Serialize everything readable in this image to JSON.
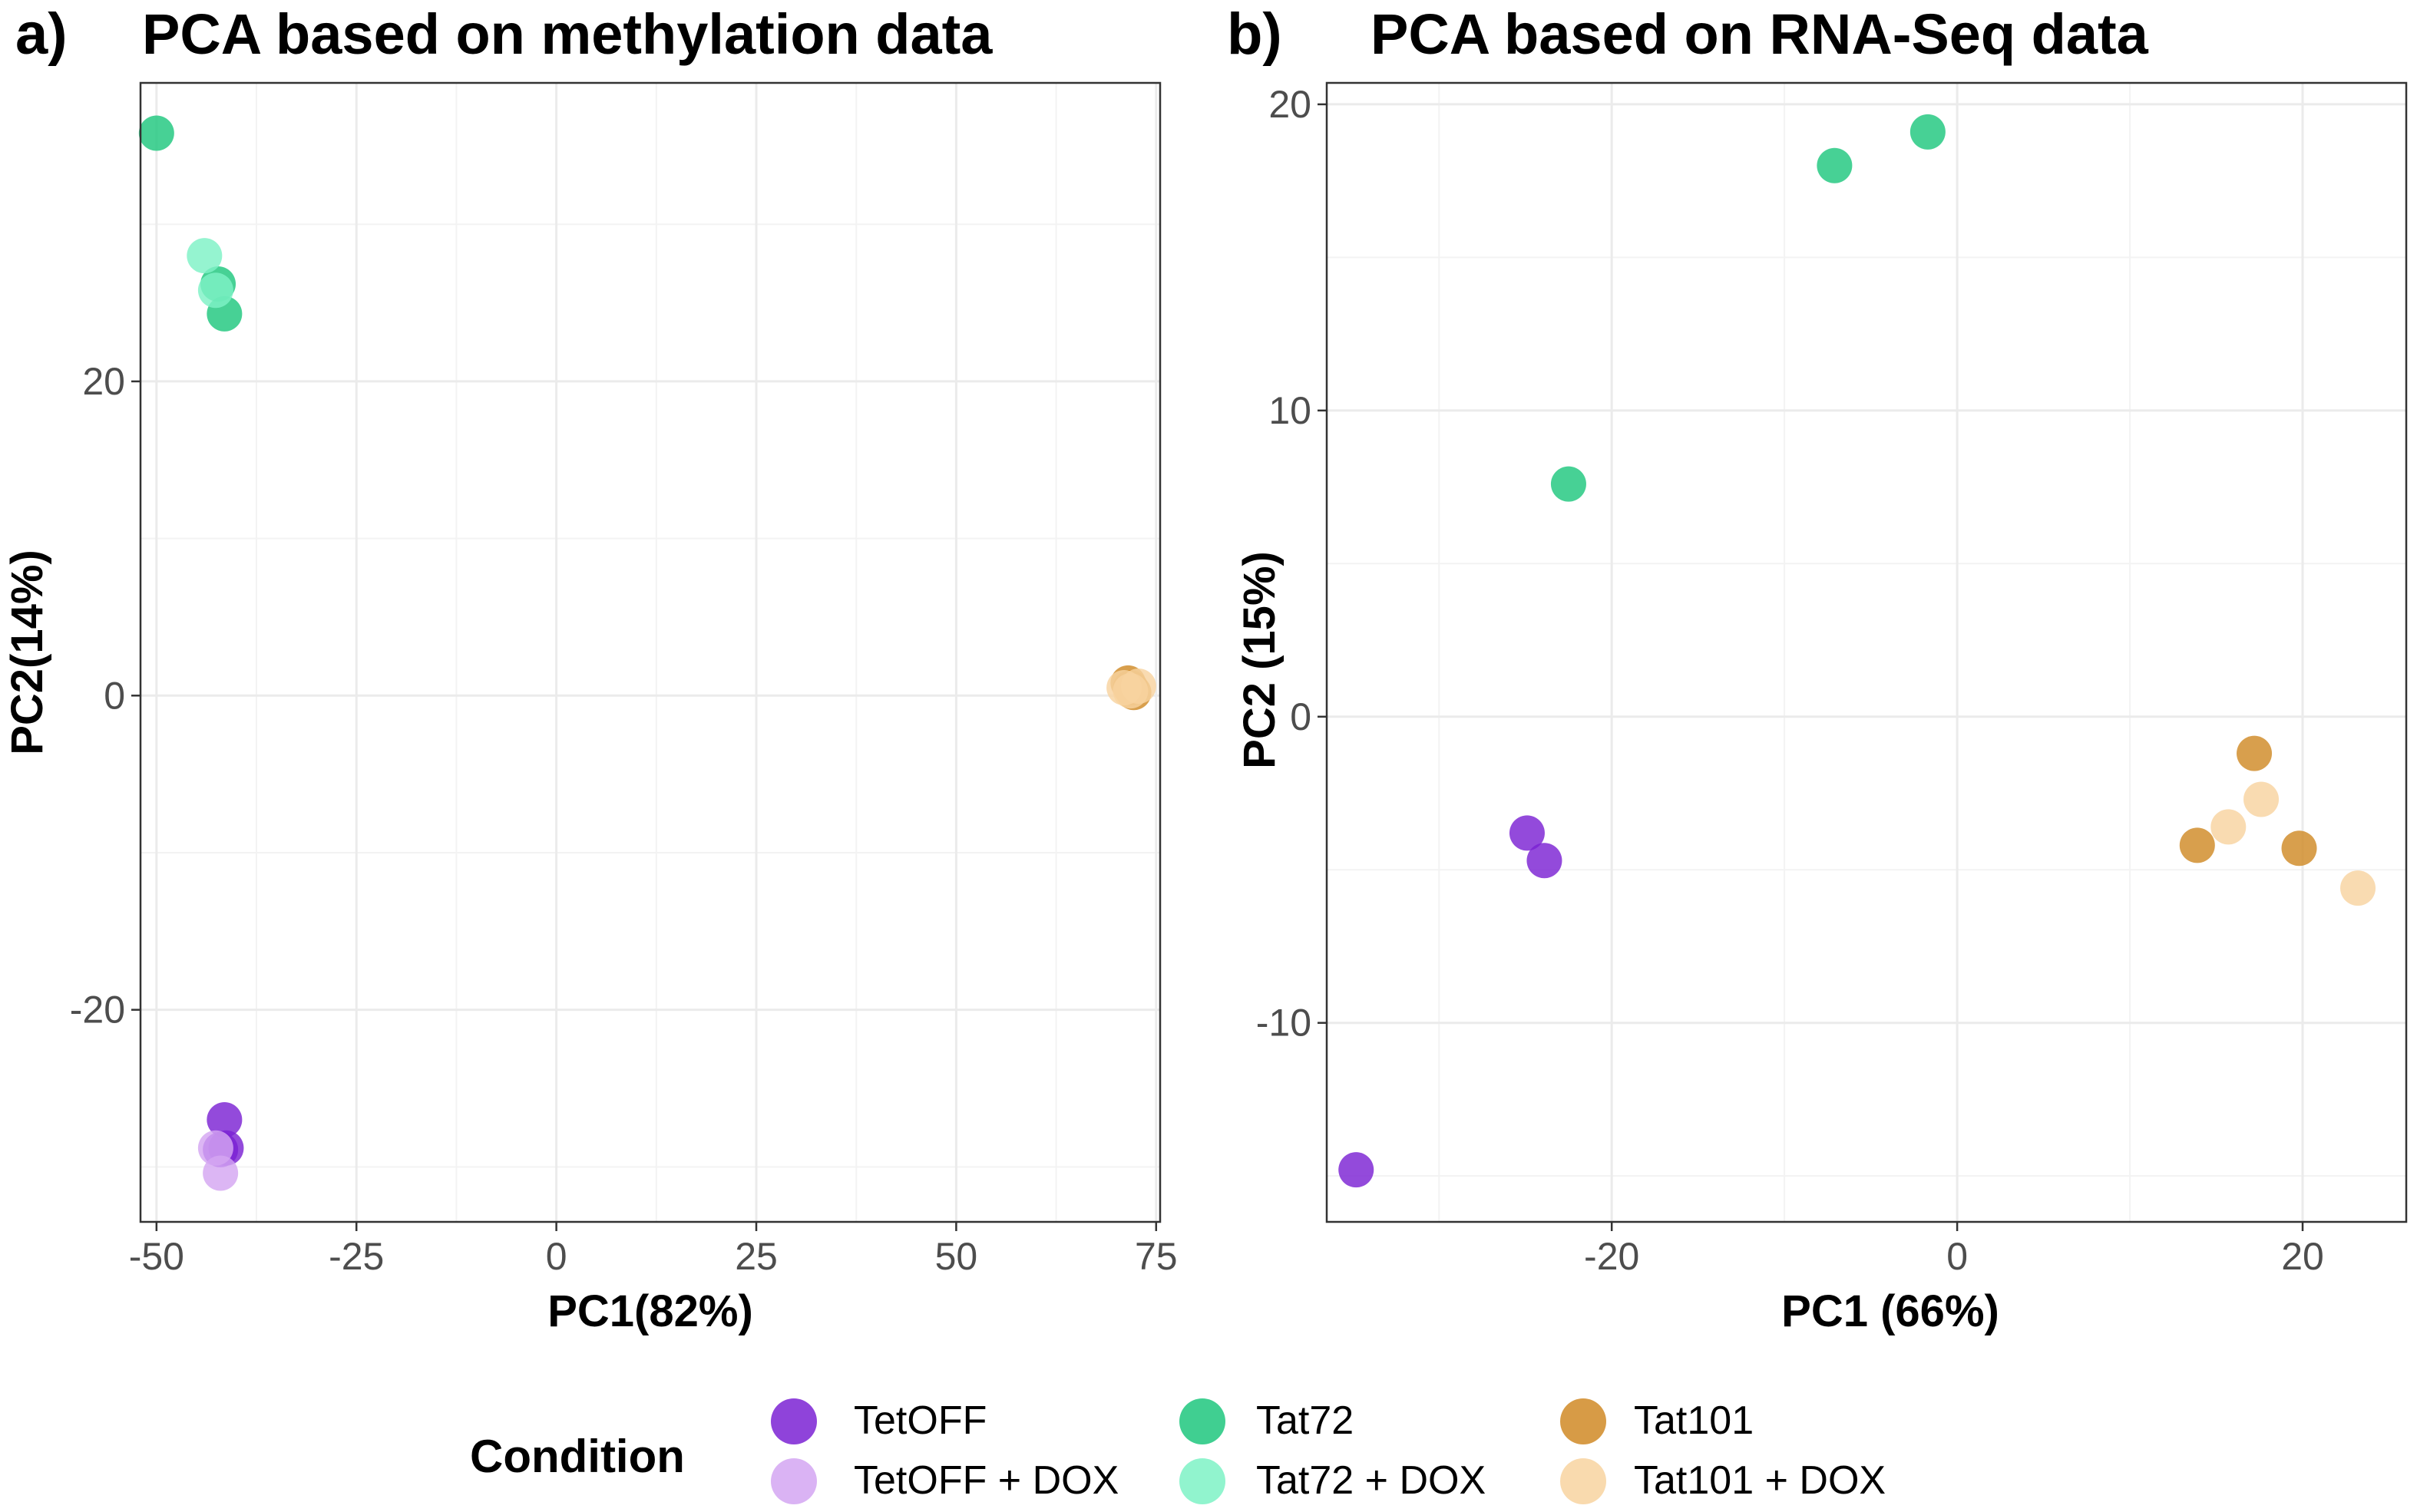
{
  "chart_data": [
    {
      "type": "scatter",
      "panel_label": "a)",
      "title": "PCA based on methylation data",
      "xlabel": "PC1(82%)",
      "ylabel": "PC2(14%)",
      "xlim": [
        -52,
        75.5
      ],
      "ylim": [
        -33.5,
        39
      ],
      "xticks": [
        -50,
        -25,
        0,
        25,
        50,
        75
      ],
      "xtick_labels": [
        "-50",
        "-25",
        "0",
        "25",
        "50",
        "75"
      ],
      "yticks": [
        -20,
        0,
        20
      ],
      "ytick_labels": [
        "-20",
        "0",
        "20"
      ],
      "grid": true,
      "series": [
        {
          "name": "TetOFF",
          "points": [
            [
              -41.5,
              -27
            ],
            [
              -41.3,
              -28.8
            ],
            [
              -42.0,
              -28.9
            ]
          ]
        },
        {
          "name": "TetOFF + DOX",
          "points": [
            [
              -42.6,
              -28.8
            ],
            [
              -42.0,
              -30.4
            ]
          ]
        },
        {
          "name": "Tat72",
          "points": [
            [
              -50.0,
              35.8
            ],
            [
              -42.3,
              26.2
            ],
            [
              -41.5,
              24.3
            ]
          ]
        },
        {
          "name": "Tat72 + DOX",
          "points": [
            [
              -44.0,
              28.0
            ],
            [
              -42.6,
              25.8
            ]
          ]
        },
        {
          "name": "Tat101",
          "points": [
            [
              71.8,
              0.5
            ],
            [
              72.2,
              0.2
            ],
            [
              71.5,
              0.8
            ]
          ]
        },
        {
          "name": "Tat101 + DOX",
          "points": [
            [
              71.0,
              0.5
            ],
            [
              72.8,
              0.6
            ],
            [
              71.8,
              0.3
            ]
          ]
        }
      ]
    },
    {
      "type": "scatter",
      "panel_label": "b)",
      "title": "PCA based on RNA-Seq data",
      "xlabel": "PC1 (66%)",
      "ylabel": "PC2 (15%)",
      "xlim": [
        -36.5,
        26.0
      ],
      "ylim": [
        -16.5,
        20.7
      ],
      "xticks": [
        -20,
        0,
        20
      ],
      "xtick_labels": [
        "-20",
        "0",
        "20"
      ],
      "yticks": [
        -10,
        0,
        10,
        20
      ],
      "ytick_labels": [
        "-10",
        "0",
        "10",
        "20"
      ],
      "grid": true,
      "series": [
        {
          "name": "TetOFF",
          "points": [
            [
              -34.8,
              -14.8
            ],
            [
              -24.9,
              -3.8
            ],
            [
              -23.9,
              -4.7
            ]
          ]
        },
        {
          "name": "TetOFF + DOX",
          "points": []
        },
        {
          "name": "Tat72",
          "points": [
            [
              -22.5,
              7.6
            ],
            [
              -7.1,
              18.0
            ],
            [
              -1.7,
              19.1
            ]
          ]
        },
        {
          "name": "Tat72 + DOX",
          "points": []
        },
        {
          "name": "Tat101",
          "points": [
            [
              17.2,
              -1.2
            ],
            [
              13.9,
              -4.2
            ],
            [
              19.8,
              -4.3
            ]
          ]
        },
        {
          "name": "Tat101 + DOX",
          "points": [
            [
              17.6,
              -2.7
            ],
            [
              15.7,
              -3.6
            ],
            [
              23.2,
              -5.6
            ]
          ]
        }
      ]
    }
  ],
  "legend": {
    "title": "Condition",
    "position": "bottom",
    "items": [
      {
        "label": "TetOFF",
        "color": "#7b22d3"
      },
      {
        "label": "TetOFF + DOX",
        "color": "#d4a6f2"
      },
      {
        "label": "Tat72",
        "color": "#1ec77e"
      },
      {
        "label": "Tat72 + DOX",
        "color": "#7ef2c6"
      },
      {
        "label": "Tat101",
        "color": "#d08a26"
      },
      {
        "label": "Tat101 + DOX",
        "color": "#f8d3a0"
      }
    ]
  }
}
